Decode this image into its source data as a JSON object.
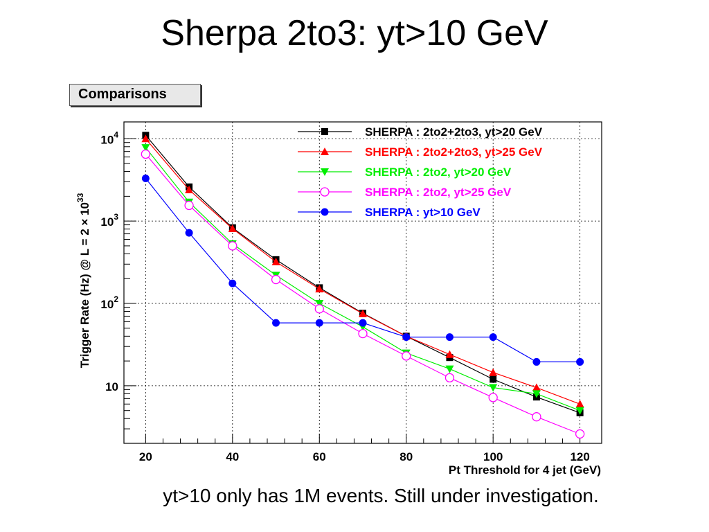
{
  "slide": {
    "title": "Sherpa 2to3: yt>10 GeV",
    "caption": "yt>10 only has 1M events. Still under investigation.",
    "panel_label": "Comparisons"
  },
  "chart_data": {
    "type": "line",
    "xlabel": "Pt Threshold for 4 jet (GeV)",
    "ylabel_main": "Trigger Rate (Hz) @ L = 2 × 10",
    "ylabel_exp": "33",
    "xlim": [
      15,
      125
    ],
    "ylim": [
      2,
      16000
    ],
    "yscale": "log",
    "grid": true,
    "legend_position": "top-right",
    "x_ticks": [
      20,
      40,
      60,
      80,
      100,
      120
    ],
    "y_ticks": [
      {
        "base": "10",
        "exp": "4"
      },
      {
        "base": "10",
        "exp": "3"
      },
      {
        "base": "10",
        "exp": "2"
      },
      {
        "base": "10",
        "exp": ""
      }
    ],
    "series": [
      {
        "name": "SHERPA : 2to2+2to3, yt>20 GeV",
        "color": "#000000",
        "marker": "square",
        "x": [
          20,
          30,
          40,
          50,
          60,
          70,
          80,
          90,
          100,
          110,
          120
        ],
        "y": [
          11000,
          2600,
          830,
          340,
          155,
          76,
          40,
          22,
          12,
          7.3,
          4.7
        ]
      },
      {
        "name": "SHERPA : 2to2+2to3, yt>25 GeV",
        "color": "#ff0000",
        "marker": "triangle-up",
        "x": [
          20,
          30,
          40,
          50,
          60,
          70,
          80,
          90,
          100,
          110,
          120
        ],
        "y": [
          10000,
          2400,
          810,
          320,
          150,
          75,
          40,
          24,
          14.5,
          9.5,
          6
        ]
      },
      {
        "name": "SHERPA : 2to2, yt>20 GeV",
        "color": "#00ee00",
        "marker": "triangle-down",
        "x": [
          20,
          30,
          40,
          50,
          60,
          70,
          80,
          90,
          100,
          110,
          120
        ],
        "y": [
          7800,
          1700,
          530,
          220,
          100,
          52,
          25,
          16,
          9.5,
          8,
          5
        ]
      },
      {
        "name": "SHERPA : 2to2, yt>25 GeV",
        "color": "#ff00ff",
        "marker": "circle-open",
        "x": [
          20,
          30,
          40,
          50,
          60,
          70,
          80,
          90,
          100,
          110,
          120
        ],
        "y": [
          6500,
          1550,
          500,
          195,
          86,
          43,
          23,
          12.5,
          7.2,
          4.2,
          2.6
        ]
      },
      {
        "name": "SHERPA : yt>10 GeV",
        "color": "#0000ff",
        "marker": "circle",
        "x": [
          20,
          30,
          40,
          50,
          60,
          70,
          80,
          90,
          100,
          110,
          120
        ],
        "y": [
          3300,
          720,
          175,
          58,
          58,
          58,
          39,
          39,
          39,
          19.5,
          19.5
        ]
      }
    ]
  }
}
